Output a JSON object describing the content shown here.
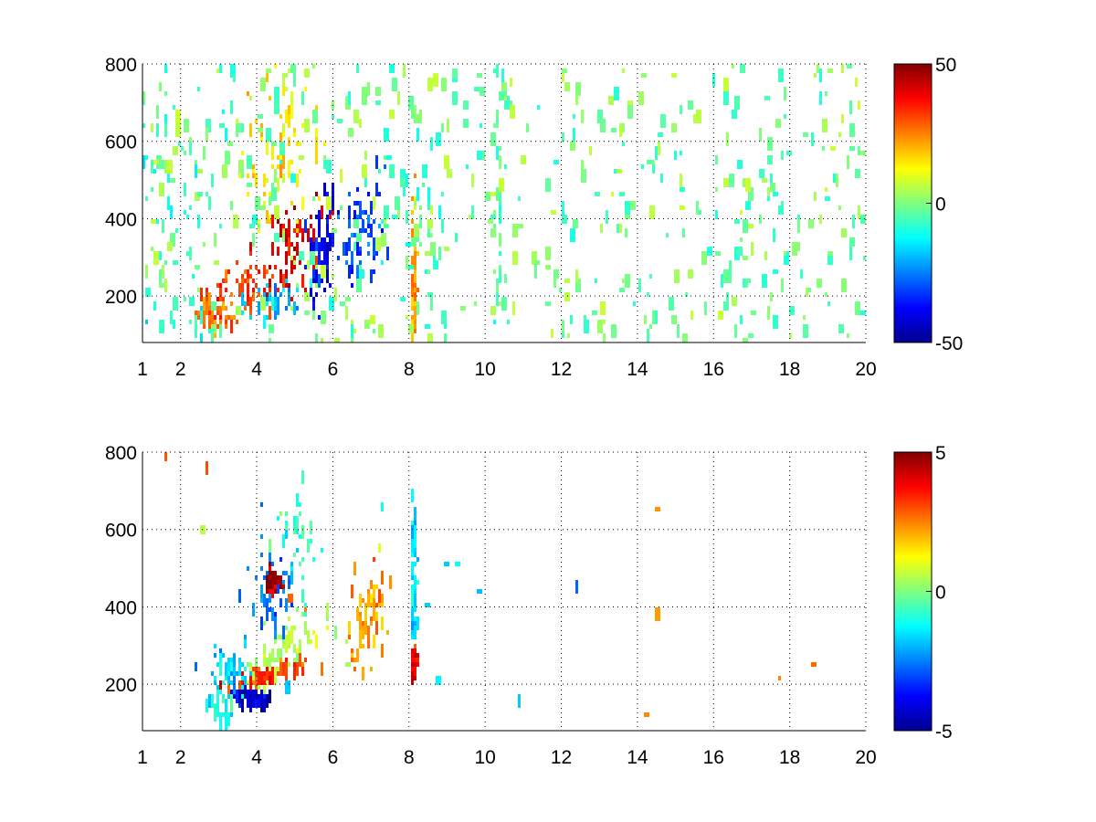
{
  "chart_data": [
    {
      "type": "heatmap",
      "title": "",
      "xlabel": "",
      "ylabel": "",
      "xlim": [
        1,
        20
      ],
      "ylim": [
        80,
        800
      ],
      "x_ticks": [
        1,
        2,
        4,
        6,
        8,
        10,
        12,
        14,
        16,
        18,
        20
      ],
      "y_ticks": [
        200,
        400,
        600,
        800
      ],
      "grid": true,
      "colormap": "jet",
      "colorbar": {
        "min": -50,
        "max": 50,
        "ticks": [
          -50,
          0,
          50
        ]
      },
      "features": [
        {
          "x": 4.9,
          "y": 330,
          "sx": 0.7,
          "sy": 80,
          "value": 40,
          "slope": 60,
          "amp": 0.95
        },
        {
          "x": 3.6,
          "y": 230,
          "sx": 0.6,
          "sy": 45,
          "value": 32,
          "slope": 25,
          "amp": 0.9
        },
        {
          "x": 2.9,
          "y": 160,
          "sx": 0.4,
          "sy": 30,
          "value": 25,
          "slope": 10,
          "amp": 0.7
        },
        {
          "x": 4.6,
          "y": 560,
          "sx": 0.8,
          "sy": 170,
          "value": 15,
          "slope": 0,
          "amp": 0.85
        },
        {
          "x": 5.7,
          "y": 330,
          "sx": 0.25,
          "sy": 90,
          "value": -38,
          "slope": 90,
          "amp": 0.9
        },
        {
          "x": 6.7,
          "y": 380,
          "sx": 0.45,
          "sy": 90,
          "value": -30,
          "slope": 70,
          "amp": 0.9
        },
        {
          "x": 4.4,
          "y": 190,
          "sx": 0.6,
          "sy": 40,
          "value": -18,
          "slope": 20,
          "amp": 0.55
        },
        {
          "x": 2.0,
          "y": 430,
          "sx": 0.9,
          "sy": 280,
          "value": -8,
          "slope": 0,
          "amp": 0.55
        },
        {
          "x": 8.4,
          "y": 430,
          "sx": 0.35,
          "sy": 200,
          "value": -5,
          "slope": 0,
          "amp": 0.45
        },
        {
          "x": 8.1,
          "y": 250,
          "sx": 0.05,
          "sy": 160,
          "value": 22,
          "slope": 0,
          "amp": 0.9
        },
        {
          "x": 10.3,
          "y": 440,
          "sx": 0.1,
          "sy": 360,
          "value": -5,
          "slope": 0,
          "amp": 0.35
        }
      ],
      "background_density": 0.035,
      "background_value_range": [
        -10,
        8
      ]
    },
    {
      "type": "heatmap",
      "title": "",
      "xlabel": "",
      "ylabel": "",
      "xlim": [
        1,
        20
      ],
      "ylim": [
        80,
        800
      ],
      "x_ticks": [
        1,
        2,
        4,
        6,
        8,
        10,
        12,
        14,
        16,
        18,
        20
      ],
      "y_ticks": [
        200,
        400,
        600,
        800
      ],
      "grid": true,
      "colormap": "jet",
      "colorbar": {
        "min": -5,
        "max": 5,
        "ticks": [
          -5,
          0,
          5
        ]
      },
      "features": [
        {
          "x": 4.7,
          "y": 290,
          "sx": 1.0,
          "sy": 55,
          "value": 0.5,
          "slope": 45,
          "amp": 0.95
        },
        {
          "x": 4.2,
          "y": 235,
          "sx": 0.8,
          "sy": 14,
          "value": 3.2,
          "slope": 28,
          "amp": 0.9
        },
        {
          "x": 3.3,
          "y": 250,
          "sx": 0.4,
          "sy": 45,
          "value": -1.8,
          "slope": 0,
          "amp": 0.85
        },
        {
          "x": 3.8,
          "y": 180,
          "sx": 0.35,
          "sy": 12,
          "value": -4.2,
          "slope": 0,
          "amp": 0.85
        },
        {
          "x": 6.9,
          "y": 380,
          "sx": 0.35,
          "sy": 90,
          "value": 2.2,
          "slope": 60,
          "amp": 0.9
        },
        {
          "x": 4.4,
          "y": 460,
          "sx": 0.5,
          "sy": 90,
          "value": -2.5,
          "slope": 0,
          "amp": 0.55
        },
        {
          "x": 4.4,
          "y": 480,
          "sx": 0.12,
          "sy": 20,
          "value": 4.6,
          "slope": 0,
          "amp": 0.85
        },
        {
          "x": 5.1,
          "y": 600,
          "sx": 0.5,
          "sy": 110,
          "value": -0.8,
          "slope": 0,
          "amp": 0.5
        },
        {
          "x": 3.1,
          "y": 155,
          "sx": 0.35,
          "sy": 30,
          "value": -1.2,
          "slope": 0,
          "amp": 0.6
        },
        {
          "x": 8.1,
          "y": 500,
          "sx": 0.06,
          "sy": 130,
          "value": -1.5,
          "slope": 0,
          "amp": 0.7
        },
        {
          "x": 8.1,
          "y": 270,
          "sx": 0.05,
          "sy": 20,
          "value": 4.0,
          "slope": 0,
          "amp": 0.8
        }
      ],
      "background_density": 0.0015,
      "background_value_range": [
        -3,
        3
      ]
    }
  ]
}
